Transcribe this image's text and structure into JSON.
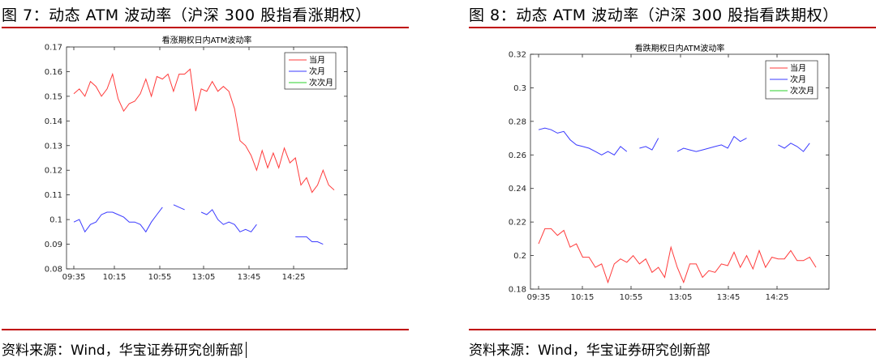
{
  "panels": [
    {
      "fig_title": "图 7：动态 ATM 波动率（沪深 300 股指看涨期权）",
      "source": "资料来源：Wind，华宝证券研究创新部"
    },
    {
      "fig_title": "图 8：动态 ATM 波动率（沪深 300 股指看跌期权）",
      "source": "资料来源：Wind，华宝证券研究创新部"
    }
  ],
  "chart_data": [
    {
      "type": "line",
      "title": "看涨期权日内ATM波动率",
      "xlabel": "",
      "ylabel": "",
      "x_ticks": [
        "09:35",
        "10:15",
        "10:55",
        "13:05",
        "13:45",
        "14:25"
      ],
      "ylim": [
        0.08,
        0.17
      ],
      "y_ticks": [
        "0.08",
        "0.09",
        "0.1",
        "0.11",
        "0.12",
        "0.13",
        "0.14",
        "0.15",
        "0.16",
        "0.17"
      ],
      "grid": false,
      "legend_position": "top-right",
      "series": [
        {
          "name": "当月",
          "color": "#ff3b3b",
          "values": [
            0.151,
            0.153,
            0.15,
            0.156,
            0.154,
            0.15,
            0.153,
            0.159,
            0.149,
            0.144,
            0.147,
            0.148,
            0.151,
            0.157,
            0.15,
            0.158,
            0.157,
            0.159,
            0.152,
            0.159,
            0.159,
            0.161,
            0.144,
            0.153,
            0.152,
            0.156,
            0.152,
            0.154,
            0.152,
            0.145,
            0.132,
            0.13,
            0.126,
            0.12,
            0.128,
            0.121,
            0.127,
            0.121,
            0.129,
            0.123,
            0.125,
            0.114,
            0.117,
            0.111,
            0.114,
            0.12,
            0.114,
            0.112
          ]
        },
        {
          "name": "次月",
          "color": "#3b3bff",
          "values": [
            0.099,
            0.1,
            0.095,
            0.098,
            0.099,
            0.102,
            0.103,
            0.103,
            0.102,
            0.101,
            0.099,
            0.099,
            0.098,
            0.095,
            0.099,
            0.102,
            0.105,
            null,
            0.106,
            0.105,
            0.104,
            null,
            null,
            0.103,
            0.102,
            0.104,
            0.1,
            0.098,
            0.099,
            0.098,
            0.095,
            0.096,
            0.095,
            0.098,
            null,
            null,
            null,
            null,
            null,
            null,
            0.093,
            0.093,
            0.093,
            0.091,
            0.091,
            0.09,
            null,
            null
          ]
        },
        {
          "name": "次次月",
          "color": "#2bd12b",
          "values": []
        }
      ]
    },
    {
      "type": "line",
      "title": "看跌期权日内ATM波动率",
      "xlabel": "",
      "ylabel": "",
      "x_ticks": [
        "09:35",
        "10:15",
        "10:55",
        "13:05",
        "13:45",
        "14:25"
      ],
      "ylim": [
        0.18,
        0.32
      ],
      "y_ticks": [
        "0.18",
        "0.2",
        "0.22",
        "0.24",
        "0.26",
        "0.28",
        "0.3",
        "0.32"
      ],
      "grid": false,
      "legend_position": "top-right",
      "series": [
        {
          "name": "当月",
          "color": "#ff3b3b",
          "values": [
            0.207,
            0.216,
            0.216,
            0.212,
            0.215,
            0.205,
            0.207,
            0.199,
            0.199,
            0.193,
            0.195,
            0.184,
            0.195,
            0.198,
            0.196,
            0.2,
            0.195,
            0.198,
            0.19,
            0.193,
            0.187,
            0.205,
            0.193,
            0.184,
            0.195,
            0.195,
            0.187,
            0.191,
            0.19,
            0.195,
            0.194,
            0.202,
            0.193,
            0.2,
            0.192,
            0.203,
            0.193,
            0.199,
            0.198,
            0.198,
            0.203,
            0.197,
            0.197,
            0.199,
            0.193
          ]
        },
        {
          "name": "次月",
          "color": "#3b3bff",
          "values": [
            0.275,
            0.276,
            0.275,
            0.273,
            0.274,
            0.269,
            0.266,
            0.265,
            0.264,
            0.262,
            0.26,
            0.262,
            0.26,
            0.265,
            0.262,
            null,
            0.264,
            0.265,
            0.263,
            0.27,
            null,
            null,
            0.262,
            0.264,
            0.263,
            0.262,
            0.263,
            0.264,
            0.265,
            0.266,
            0.264,
            0.271,
            0.268,
            0.27,
            null,
            null,
            null,
            null,
            0.266,
            0.264,
            0.267,
            0.265,
            0.262,
            0.267,
            null
          ]
        },
        {
          "name": "次次月",
          "color": "#2bd12b",
          "values": []
        }
      ]
    }
  ]
}
